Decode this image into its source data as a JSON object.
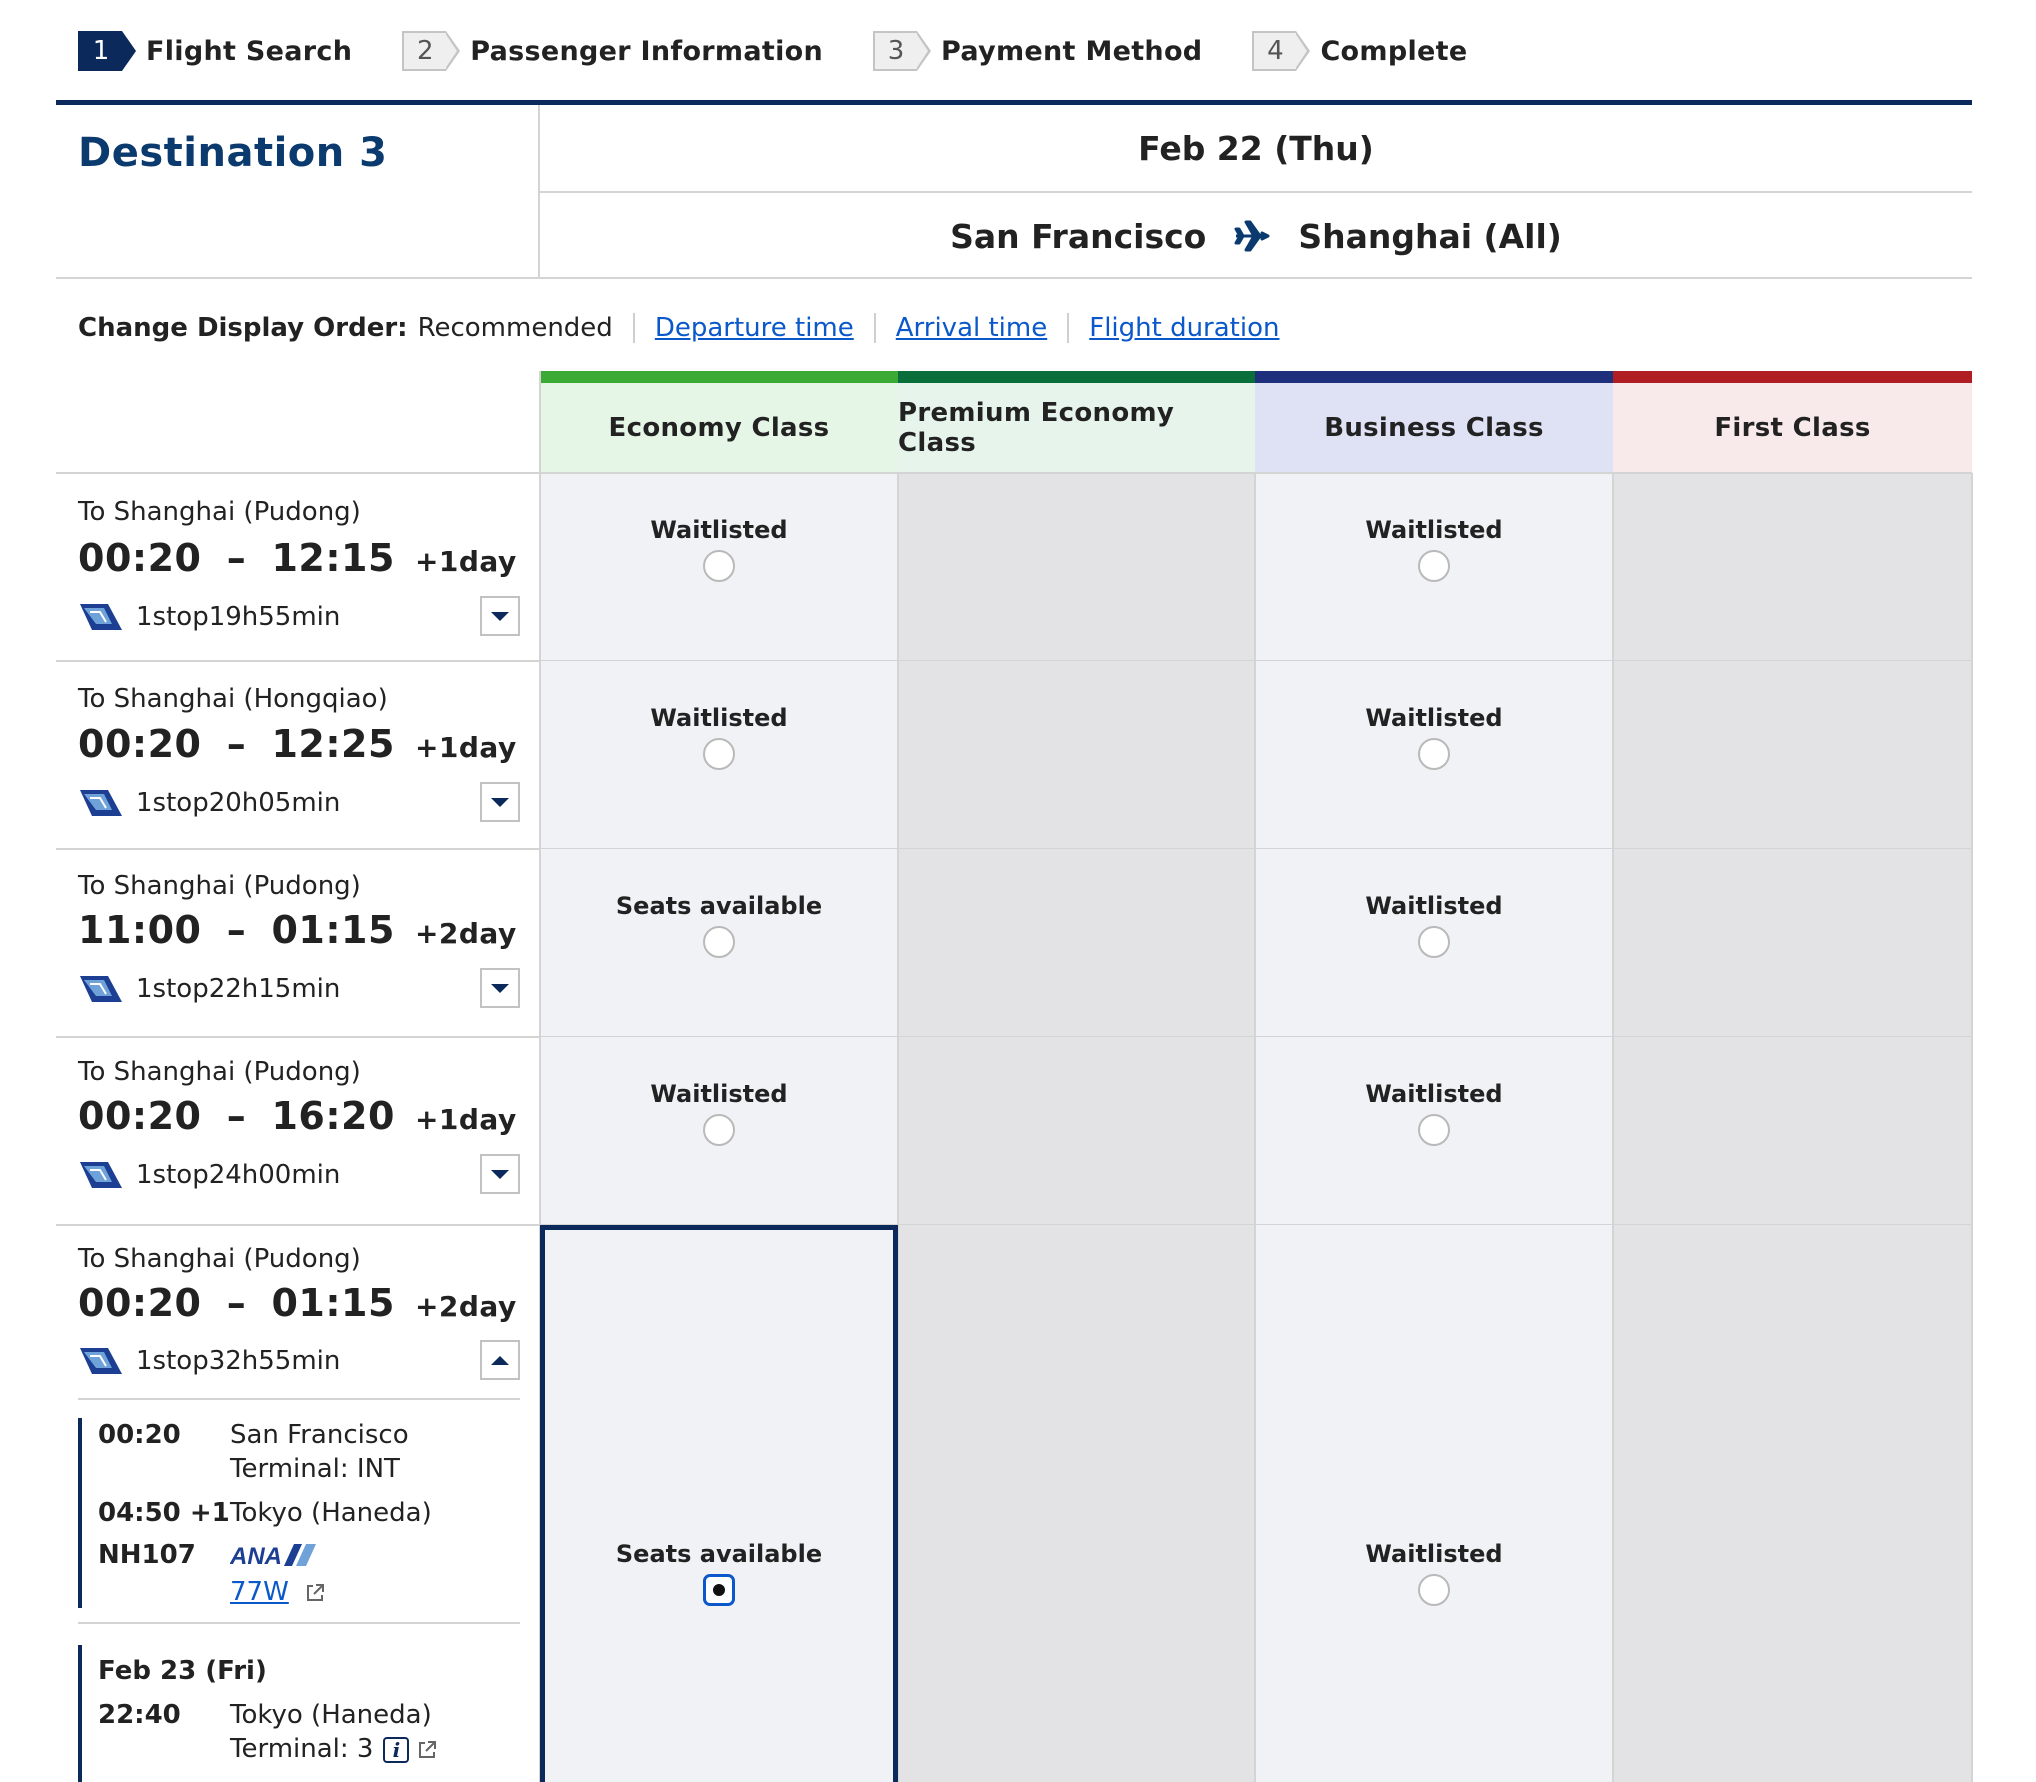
{
  "steps": [
    {
      "num": "1",
      "label": "Flight Search",
      "active": true
    },
    {
      "num": "2",
      "label": "Passenger Information",
      "active": false
    },
    {
      "num": "3",
      "label": "Payment Method",
      "active": false
    },
    {
      "num": "4",
      "label": "Complete",
      "active": false
    }
  ],
  "header": {
    "destination": "Destination 3",
    "date": "Feb 22 (Thu)",
    "origin": "San Francisco",
    "destination_city": "Shanghai (All)"
  },
  "sort": {
    "label": "Change Display Order:",
    "current": "Recommended",
    "options": [
      "Departure time",
      "Arrival time",
      "Flight duration"
    ]
  },
  "classes": [
    {
      "name": "Economy Class",
      "color": "#3aaa35",
      "bg": "#e5f5e6"
    },
    {
      "name": "Premium Economy Class",
      "color": "#0a6e3a",
      "bg": "#e6f4ec"
    },
    {
      "name": "Business Class",
      "color": "#1e2f7c",
      "bg": "#dfe2f4"
    },
    {
      "name": "First Class",
      "color": "#b01e23",
      "bg": "#f8e9ea"
    }
  ],
  "flights": [
    {
      "to": "To Shanghai (Pudong)",
      "dep": "00:20",
      "arr": "12:15",
      "plus": "+1day",
      "duration": "1stop19h55min",
      "availability": [
        "Waitlisted",
        null,
        "Waitlisted",
        null
      ]
    },
    {
      "to": "To Shanghai (Hongqiao)",
      "dep": "00:20",
      "arr": "12:25",
      "plus": "+1day",
      "duration": "1stop20h05min",
      "availability": [
        "Waitlisted",
        null,
        "Waitlisted",
        null
      ]
    },
    {
      "to": "To Shanghai (Pudong)",
      "dep": "11:00",
      "arr": "01:15",
      "plus": "+2day",
      "duration": "1stop22h15min",
      "availability": [
        "Seats available",
        null,
        "Waitlisted",
        null
      ]
    },
    {
      "to": "To Shanghai (Pudong)",
      "dep": "00:20",
      "arr": "16:20",
      "plus": "+1day",
      "duration": "1stop24h00min",
      "availability": [
        "Waitlisted",
        null,
        "Waitlisted",
        null
      ]
    },
    {
      "to": "To Shanghai (Pudong)",
      "dep": "00:20",
      "arr": "01:15",
      "plus": "+2day",
      "duration": "1stop32h55min",
      "availability": [
        "Seats available",
        null,
        "Waitlisted",
        null
      ],
      "selected_class": "Economy Class"
    }
  ],
  "details": {
    "seg1": {
      "dep_time": "00:20",
      "dep_city": "San Francisco",
      "dep_terminal": "Terminal: INT",
      "arr_time": "04:50 +1",
      "arr_city": "Tokyo (Haneda)",
      "flight_no": "NH107",
      "airline_logo": "ANA",
      "aircraft": "77W"
    },
    "seg2": {
      "date": "Feb 23 (Fri)",
      "dep_time": "22:40",
      "dep_city": "Tokyo (Haneda)",
      "dep_terminal": "Terminal: 3"
    }
  }
}
